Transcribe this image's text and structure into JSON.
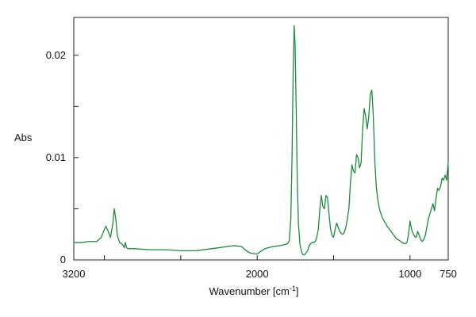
{
  "chart_data": {
    "type": "line",
    "title": "",
    "xlabel": "Wavenumber [cm",
    "xlabel_sup": "-1",
    "xlabel_close": "]",
    "ylabel": "Abs",
    "xlim": [
      3200,
      750
    ],
    "ylim": [
      0,
      0.0237
    ],
    "x_reversed": true,
    "grid": false,
    "line_color": "#1e8a3c",
    "x_ticks": [
      {
        "value": 3200,
        "label": "3200"
      },
      {
        "value": 2000,
        "label": "2000"
      },
      {
        "value": 1000,
        "label": "1000"
      },
      {
        "value": 750,
        "label": "750"
      }
    ],
    "x_minor_ticks": [
      3000,
      2500,
      1500
    ],
    "y_ticks": [
      {
        "value": 0,
        "label": "0"
      },
      {
        "value": 0.01,
        "label": "0.01"
      },
      {
        "value": 0.02,
        "label": "0.02"
      }
    ],
    "y_minor_ticks": [
      0.005,
      0.015
    ],
    "series": [
      {
        "x": [
          3200,
          3150,
          3100,
          3050,
          3020,
          3005,
          2990,
          2975,
          2960,
          2945,
          2935,
          2925,
          2915,
          2900,
          2880,
          2870,
          2862,
          2855,
          2845,
          2800,
          2700,
          2600,
          2500,
          2400,
          2300,
          2200,
          2150,
          2100,
          2080,
          2050,
          2020,
          2000,
          1950,
          1900,
          1850,
          1820,
          1800,
          1790,
          1780,
          1772,
          1765,
          1758,
          1752,
          1745,
          1738,
          1730,
          1720,
          1710,
          1700,
          1690,
          1680,
          1670,
          1660,
          1650,
          1640,
          1630,
          1620,
          1610,
          1600,
          1590,
          1580,
          1570,
          1560,
          1550,
          1540,
          1530,
          1520,
          1510,
          1500,
          1490,
          1480,
          1470,
          1460,
          1450,
          1440,
          1430,
          1420,
          1410,
          1400,
          1390,
          1380,
          1370,
          1360,
          1350,
          1340,
          1330,
          1320,
          1310,
          1300,
          1290,
          1280,
          1270,
          1260,
          1250,
          1240,
          1230,
          1220,
          1210,
          1200,
          1190,
          1180,
          1170,
          1160,
          1150,
          1140,
          1130,
          1120,
          1110,
          1100,
          1090,
          1080,
          1070,
          1060,
          1050,
          1040,
          1030,
          1020,
          1010,
          1000,
          990,
          980,
          970,
          960,
          950,
          940,
          930,
          920,
          910,
          900,
          890,
          880,
          870,
          860,
          850,
          840,
          830,
          820,
          810,
          800,
          790,
          780,
          770,
          760,
          750
        ],
        "y": [
          0.0017,
          0.0017,
          0.0018,
          0.0018,
          0.0022,
          0.0028,
          0.0033,
          0.0028,
          0.0022,
          0.0035,
          0.005,
          0.004,
          0.0024,
          0.0017,
          0.0015,
          0.0012,
          0.0017,
          0.0012,
          0.0011,
          0.0011,
          0.001,
          0.001,
          0.0009,
          0.0009,
          0.0011,
          0.0013,
          0.0014,
          0.0013,
          0.001,
          0.0007,
          0.0006,
          0.0006,
          0.0011,
          0.0013,
          0.0014,
          0.0015,
          0.0016,
          0.0019,
          0.004,
          0.01,
          0.018,
          0.0229,
          0.021,
          0.015,
          0.008,
          0.0035,
          0.0015,
          0.0008,
          0.0005,
          0.0005,
          0.0007,
          0.0009,
          0.0014,
          0.0016,
          0.0017,
          0.0017,
          0.0018,
          0.0022,
          0.003,
          0.005,
          0.0063,
          0.0052,
          0.005,
          0.0063,
          0.0061,
          0.0045,
          0.003,
          0.0024,
          0.0022,
          0.003,
          0.0036,
          0.0032,
          0.0028,
          0.0026,
          0.0025,
          0.0027,
          0.0032,
          0.004,
          0.005,
          0.0075,
          0.0093,
          0.0087,
          0.0085,
          0.0103,
          0.01,
          0.009,
          0.0095,
          0.0128,
          0.0148,
          0.014,
          0.0128,
          0.014,
          0.0162,
          0.0166,
          0.014,
          0.0095,
          0.007,
          0.0058,
          0.005,
          0.0045,
          0.0041,
          0.0038,
          0.0036,
          0.0033,
          0.0031,
          0.0029,
          0.0027,
          0.0025,
          0.0023,
          0.0021,
          0.002,
          0.0019,
          0.0018,
          0.0017,
          0.0016,
          0.0016,
          0.0017,
          0.0025,
          0.0038,
          0.003,
          0.0026,
          0.0023,
          0.0022,
          0.0028,
          0.0024,
          0.002,
          0.0018,
          0.002,
          0.0024,
          0.0032,
          0.004,
          0.0045,
          0.005,
          0.0055,
          0.0048,
          0.006,
          0.007,
          0.0068,
          0.0072,
          0.008,
          0.0078,
          0.0083,
          0.0078,
          0.0096
        ]
      }
    ]
  }
}
